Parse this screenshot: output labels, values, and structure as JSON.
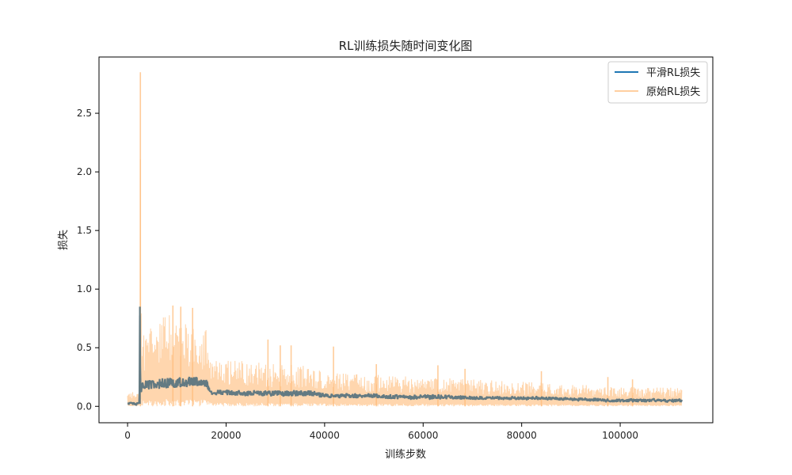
{
  "chart_data": {
    "type": "line",
    "title": "RL训练损失随时间变化图",
    "xlabel": "训练步数",
    "ylabel": "损失",
    "xlim": [
      -5800,
      118800
    ],
    "ylim": [
      -0.14,
      2.98
    ],
    "xticks": [
      0,
      20000,
      40000,
      60000,
      80000,
      100000
    ],
    "xtick_labels": [
      "0",
      "20000",
      "40000",
      "60000",
      "80000",
      "100000"
    ],
    "yticks": [
      0.0,
      0.5,
      1.0,
      1.5,
      2.0,
      2.5
    ],
    "ytick_labels": [
      "0.0",
      "0.5",
      "1.0",
      "1.5",
      "2.0",
      "2.5"
    ],
    "grid": false,
    "legend_position": "upper right",
    "series": [
      {
        "name": "平滑RL损失",
        "color": "#1f77b4",
        "role": "smoothed",
        "x": [
          0,
          600,
          1200,
          1800,
          2400,
          2500,
          2600,
          2700,
          3200,
          4000,
          6000,
          8000,
          10000,
          12000,
          14000,
          16000,
          16800,
          17500,
          20000,
          25000,
          30000,
          35000,
          38000,
          40000,
          45000,
          50000,
          55000,
          60000,
          65000,
          70000,
          75000,
          80000,
          85000,
          90000,
          95000,
          97000,
          100000,
          105000,
          110000,
          112500
        ],
        "values": [
          0.02,
          0.03,
          0.02,
          0.02,
          0.02,
          0.85,
          0.15,
          0.16,
          0.17,
          0.18,
          0.19,
          0.2,
          0.2,
          0.21,
          0.21,
          0.2,
          0.13,
          0.12,
          0.12,
          0.11,
          0.11,
          0.11,
          0.11,
          0.09,
          0.09,
          0.09,
          0.08,
          0.08,
          0.08,
          0.07,
          0.07,
          0.07,
          0.07,
          0.06,
          0.06,
          0.05,
          0.05,
          0.05,
          0.05,
          0.05
        ],
        "band": [
          0.03,
          0.03,
          0.03,
          0.03,
          0.03,
          0.0,
          0.08,
          0.08,
          0.08,
          0.09,
          0.09,
          0.09,
          0.09,
          0.09,
          0.08,
          0.08,
          0.05,
          0.05,
          0.05,
          0.05,
          0.05,
          0.05,
          0.05,
          0.04,
          0.04,
          0.04,
          0.04,
          0.04,
          0.04,
          0.03,
          0.03,
          0.03,
          0.03,
          0.03,
          0.03,
          0.03,
          0.03,
          0.03,
          0.03,
          0.03
        ]
      },
      {
        "name": "原始RL损失",
        "color": "#ffbb78",
        "role": "raw",
        "x": [
          0,
          600,
          1200,
          1800,
          2400,
          2600,
          2800,
          3200,
          4000,
          6000,
          8000,
          10000,
          12000,
          14000,
          16000,
          16800,
          17500,
          20000,
          25000,
          30000,
          35000,
          38000,
          40000,
          45000,
          50000,
          55000,
          60000,
          65000,
          70000,
          75000,
          80000,
          85000,
          90000,
          95000,
          97000,
          100000,
          105000,
          110000,
          112500
        ],
        "envelope": [
          0.12,
          0.14,
          0.12,
          0.13,
          0.14,
          2.85,
          0.95,
          0.6,
          0.65,
          0.72,
          0.8,
          0.75,
          0.72,
          0.7,
          0.67,
          0.45,
          0.42,
          0.4,
          0.38,
          0.36,
          0.35,
          0.33,
          0.3,
          0.28,
          0.27,
          0.26,
          0.25,
          0.24,
          0.23,
          0.22,
          0.21,
          0.2,
          0.19,
          0.18,
          0.17,
          0.17,
          0.16,
          0.16,
          0.16
        ]
      }
    ],
    "spikes": [
      {
        "x": 2600,
        "value": 2.85
      },
      {
        "x": 9200,
        "value": 0.86
      },
      {
        "x": 10800,
        "value": 0.85
      },
      {
        "x": 13200,
        "value": 0.84
      },
      {
        "x": 28500,
        "value": 0.57
      },
      {
        "x": 31000,
        "value": 0.52
      },
      {
        "x": 33200,
        "value": 0.52
      },
      {
        "x": 41800,
        "value": 0.51
      },
      {
        "x": 50500,
        "value": 0.36
      },
      {
        "x": 63000,
        "value": 0.35
      },
      {
        "x": 68500,
        "value": 0.32
      },
      {
        "x": 84000,
        "value": 0.3
      },
      {
        "x": 97500,
        "value": 0.25
      },
      {
        "x": 102500,
        "value": 0.23
      }
    ]
  }
}
